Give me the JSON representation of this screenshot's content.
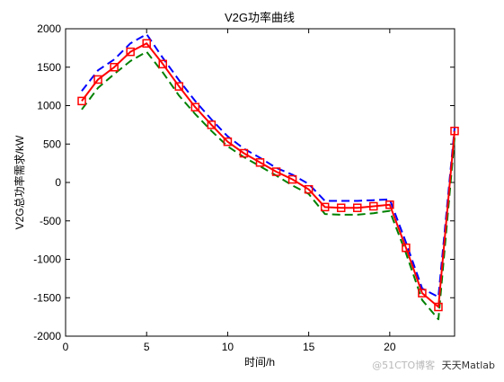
{
  "chart_data": {
    "type": "line",
    "title": "V2G功率曲线",
    "xlabel": "时间/h",
    "ylabel": "V2G总功率需求/kW",
    "xlim": [
      0,
      24
    ],
    "ylim": [
      -2000,
      2000
    ],
    "xticks": [
      0,
      5,
      10,
      15,
      20
    ],
    "yticks": [
      -2000,
      -1500,
      -1000,
      -500,
      0,
      500,
      1000,
      1500,
      2000
    ],
    "grid": false,
    "legend": "none",
    "x": [
      1,
      2,
      3,
      4,
      5,
      6,
      7,
      8,
      9,
      10,
      11,
      12,
      13,
      14,
      15,
      16,
      17,
      18,
      19,
      20,
      21,
      22,
      23,
      24
    ],
    "series": [
      {
        "color": "#0000ff",
        "style": "dashed",
        "values": [
          1190,
          1460,
          1600,
          1810,
          1930,
          1620,
          1330,
          1060,
          820,
          600,
          440,
          320,
          190,
          100,
          -20,
          -240,
          -240,
          -240,
          -230,
          -220,
          -780,
          -1380,
          -1490,
          710
        ]
      },
      {
        "color": "#008000",
        "style": "dashed",
        "values": [
          950,
          1230,
          1410,
          1580,
          1700,
          1430,
          1130,
          890,
          670,
          470,
          330,
          210,
          90,
          -40,
          -150,
          -410,
          -420,
          -420,
          -400,
          -370,
          -920,
          -1530,
          -1780,
          580
        ]
      },
      {
        "color": "#ff0000",
        "style": "solid",
        "marker": "square",
        "values": [
          1060,
          1340,
          1500,
          1700,
          1810,
          1540,
          1250,
          980,
          750,
          530,
          380,
          260,
          140,
          40,
          -90,
          -320,
          -330,
          -330,
          -310,
          -290,
          -850,
          -1440,
          -1620,
          670
        ]
      }
    ]
  },
  "watermark": {
    "left_text": "@51CTO博客",
    "brand_text": "天天Matlab"
  }
}
